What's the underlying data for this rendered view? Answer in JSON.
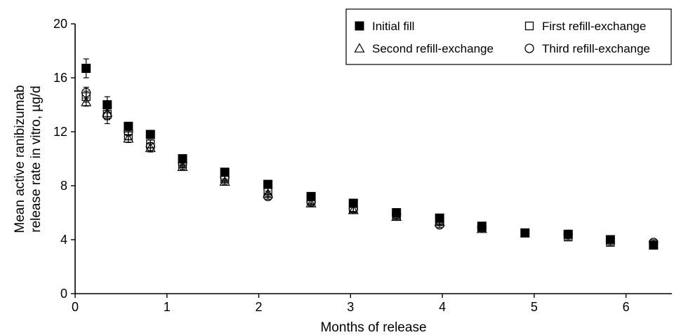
{
  "chart_data": {
    "type": "scatter",
    "title": "",
    "xlabel": "Months of release",
    "ylabel_lines": [
      "Mean active ranibizumab",
      "release rate in vitro, µg/d"
    ],
    "xlim": [
      0,
      6.5
    ],
    "ylim": [
      0,
      20
    ],
    "x_ticks": [
      0,
      1,
      2,
      3,
      4,
      5,
      6
    ],
    "x_tick_labels": [
      "0",
      "1",
      "2",
      "3",
      "4",
      "5",
      "6"
    ],
    "y_ticks": [
      0,
      4,
      8,
      12,
      16,
      20
    ],
    "y_tick_labels": [
      "0",
      "4",
      "8",
      "12",
      "16",
      "20"
    ],
    "grid": false,
    "legend_position": "top-right",
    "series": [
      {
        "name": "Initial fill",
        "marker": "filled-square",
        "points": [
          {
            "x": 0.12,
            "y": 16.7,
            "err": 0.7
          },
          {
            "x": 0.35,
            "y": 14.0,
            "err": 0.6
          },
          {
            "x": 0.58,
            "y": 12.4,
            "err": 0.3
          },
          {
            "x": 0.82,
            "y": 11.8,
            "err": 0.3
          },
          {
            "x": 1.17,
            "y": 10.0,
            "err": 0.2
          },
          {
            "x": 1.63,
            "y": 9.0,
            "err": 0.2
          },
          {
            "x": 2.1,
            "y": 8.1,
            "err": 0.2
          },
          {
            "x": 2.57,
            "y": 7.2,
            "err": 0.2
          },
          {
            "x": 3.03,
            "y": 6.7,
            "err": 0.2
          },
          {
            "x": 3.5,
            "y": 6.0,
            "err": 0.2
          },
          {
            "x": 3.97,
            "y": 5.6,
            "err": 0.2
          },
          {
            "x": 4.43,
            "y": 5.0,
            "err": 0.2
          },
          {
            "x": 4.9,
            "y": 4.5,
            "err": 0.2
          },
          {
            "x": 5.37,
            "y": 4.4,
            "err": 0.2
          },
          {
            "x": 5.83,
            "y": 4.0,
            "err": 0.2
          },
          {
            "x": 6.3,
            "y": 3.6,
            "err": 0.2
          }
        ]
      },
      {
        "name": "First refill-exchange",
        "marker": "open-square",
        "points": [
          {
            "x": 0.12,
            "y": 14.6,
            "err": 0.4
          },
          {
            "x": 0.35,
            "y": 13.3,
            "err": 0.4
          },
          {
            "x": 0.58,
            "y": 11.7,
            "err": 0.3
          },
          {
            "x": 0.82,
            "y": 11.1,
            "err": 0.3
          },
          {
            "x": 1.17,
            "y": 9.6,
            "err": 0.2
          },
          {
            "x": 1.63,
            "y": 8.5,
            "err": 0.2
          },
          {
            "x": 2.1,
            "y": 7.6,
            "err": 0.2
          },
          {
            "x": 2.57,
            "y": 6.9,
            "err": 0.2
          },
          {
            "x": 3.03,
            "y": 6.3,
            "err": 0.2
          },
          {
            "x": 3.5,
            "y": 5.8,
            "err": 0.2
          },
          {
            "x": 3.97,
            "y": 5.4,
            "err": 0.2
          },
          {
            "x": 4.43,
            "y": 4.9,
            "err": 0.2
          },
          {
            "x": 4.9,
            "y": 4.5,
            "err": 0.2
          },
          {
            "x": 5.37,
            "y": 4.2,
            "err": 0.2
          },
          {
            "x": 5.83,
            "y": 3.8,
            "err": 0.2
          },
          {
            "x": 6.3,
            "y": 3.6,
            "err": 0.2
          }
        ]
      },
      {
        "name": "Second refill-exchange",
        "marker": "open-triangle",
        "points": [
          {
            "x": 0.12,
            "y": 14.2,
            "err": 0.3
          },
          {
            "x": 0.35,
            "y": 13.4,
            "err": 0.5
          },
          {
            "x": 0.58,
            "y": 11.5,
            "err": 0.3
          },
          {
            "x": 0.82,
            "y": 10.8,
            "err": 0.3
          },
          {
            "x": 1.17,
            "y": 9.4,
            "err": 0.2
          },
          {
            "x": 1.63,
            "y": 8.3,
            "err": 0.2
          },
          {
            "x": 2.1,
            "y": 7.4,
            "err": 0.2
          },
          {
            "x": 2.57,
            "y": 6.7,
            "err": 0.2
          },
          {
            "x": 3.03,
            "y": 6.2,
            "err": 0.2
          },
          {
            "x": 3.5,
            "y": 5.7,
            "err": 0.2
          },
          {
            "x": 3.97,
            "y": 5.3,
            "err": 0.2
          },
          {
            "x": 4.43,
            "y": 4.8,
            "err": 0.2
          }
        ]
      },
      {
        "name": "Third refill-exchange",
        "marker": "open-circle",
        "points": [
          {
            "x": 0.12,
            "y": 14.9,
            "err": 0.4
          },
          {
            "x": 0.35,
            "y": 13.2,
            "err": 0.6
          },
          {
            "x": 0.58,
            "y": 12.0,
            "err": 0.3
          },
          {
            "x": 0.82,
            "y": 10.9,
            "err": 0.3
          },
          {
            "x": 1.17,
            "y": 9.7,
            "err": 0.2
          },
          {
            "x": 1.63,
            "y": 8.6,
            "err": 0.2
          },
          {
            "x": 2.1,
            "y": 7.2,
            "err": 0.2
          },
          {
            "x": 2.57,
            "y": 6.8,
            "err": 0.2
          },
          {
            "x": 3.03,
            "y": 6.3,
            "err": 0.2
          },
          {
            "x": 3.5,
            "y": 5.9,
            "err": 0.2
          },
          {
            "x": 3.97,
            "y": 5.1,
            "err": 0.2
          },
          {
            "x": 4.43,
            "y": 4.9,
            "err": 0.2
          },
          {
            "x": 5.37,
            "y": 4.4,
            "err": 0.2
          },
          {
            "x": 6.3,
            "y": 3.8,
            "err": 0.2
          }
        ]
      }
    ],
    "colors": {
      "marker": "#000000",
      "axis": "#000000",
      "background": "#ffffff"
    }
  }
}
